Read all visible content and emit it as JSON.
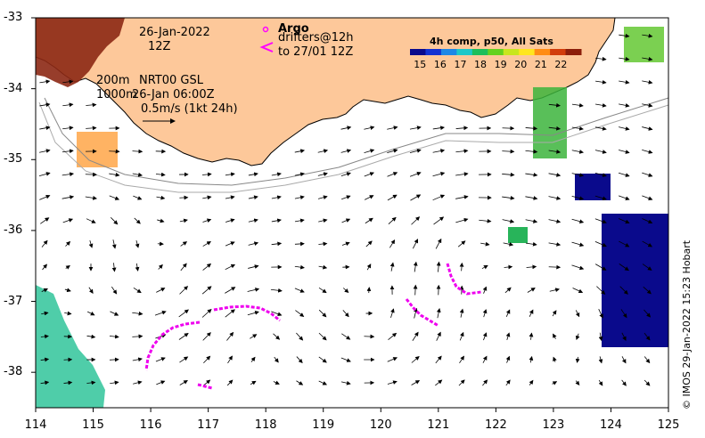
{
  "map": {
    "date_line1": "26-Jan-2022",
    "date_line2": "12Z",
    "argo_label": "Argo",
    "drifters_line1": "drifters@12h",
    "drifters_line2": "to 27/01 12Z",
    "depth_200": "200m",
    "depth_1000": "1000m",
    "product": "NRT00 GSL",
    "product_time": "26-Jan 06:00Z",
    "scale_label": "0.5m/s (1kt 24h)",
    "credit": "© IMOS 29-Jan-2022 15:23 Hobart",
    "colors": {
      "land": "#fdc89a",
      "ocean": "#ffffff",
      "argo": "#ff00ff",
      "drifter": "#ee00ee",
      "coast": "#000000"
    }
  },
  "colorbar": {
    "title": "4h comp, p50, All Sats",
    "labels": [
      "15",
      "16",
      "17",
      "18",
      "19",
      "20",
      "21",
      "22"
    ],
    "range": [
      14.5,
      23
    ],
    "colors": [
      "#0a0a8c",
      "#1432d2",
      "#1e88e6",
      "#1ec8c8",
      "#1ebe5a",
      "#64d21e",
      "#c8e61e",
      "#ffe61e",
      "#ff8c14",
      "#d23c0a",
      "#8c1e0a"
    ]
  },
  "axes": {
    "x_ticks": [
      "114",
      "115",
      "116",
      "117",
      "118",
      "119",
      "120",
      "121",
      "122",
      "123",
      "124",
      "125"
    ],
    "y_ticks": [
      "-33",
      "-34",
      "-35",
      "-36",
      "-37",
      "-38"
    ],
    "lon_range": [
      114,
      125
    ],
    "lat_range": [
      -38.5,
      -33
    ]
  }
}
